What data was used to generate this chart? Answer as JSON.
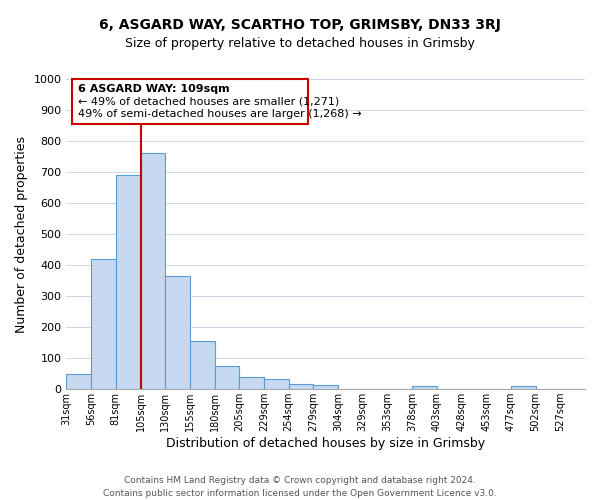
{
  "title1": "6, ASGARD WAY, SCARTHO TOP, GRIMSBY, DN33 3RJ",
  "title2": "Size of property relative to detached houses in Grimsby",
  "xlabel": "Distribution of detached houses by size in Grimsby",
  "ylabel": "Number of detached properties",
  "bar_values": [
    50,
    420,
    690,
    760,
    365,
    155,
    75,
    40,
    33,
    18,
    12,
    0,
    0,
    0,
    10,
    0,
    0,
    0,
    10,
    0,
    0
  ],
  "bar_labels": [
    "31sqm",
    "56sqm",
    "81sqm",
    "105sqm",
    "130sqm",
    "155sqm",
    "180sqm",
    "205sqm",
    "229sqm",
    "254sqm",
    "279sqm",
    "304sqm",
    "329sqm",
    "353sqm",
    "378sqm",
    "403sqm",
    "428sqm",
    "453sqm",
    "477sqm",
    "502sqm",
    "527sqm"
  ],
  "bar_color": "#c6d9f0",
  "bar_edge_color": "#5b9bd5",
  "vline_x": 3.0,
  "vline_color": "#cc0000",
  "annotation_lines": [
    "6 ASGARD WAY: 109sqm",
    "← 49% of detached houses are smaller (1,271)",
    "49% of semi-detached houses are larger (1,268) →"
  ],
  "box_edge_color": "#cc0000",
  "box_face_color": "#ffffff",
  "ylim": [
    0,
    1000
  ],
  "yticks": [
    0,
    100,
    200,
    300,
    400,
    500,
    600,
    700,
    800,
    900,
    1000
  ],
  "footer_text": "Contains HM Land Registry data © Crown copyright and database right 2024.\nContains public sector information licensed under the Open Government Licence v3.0.",
  "background_color": "#ffffff",
  "grid_color": "#cdd8ea"
}
